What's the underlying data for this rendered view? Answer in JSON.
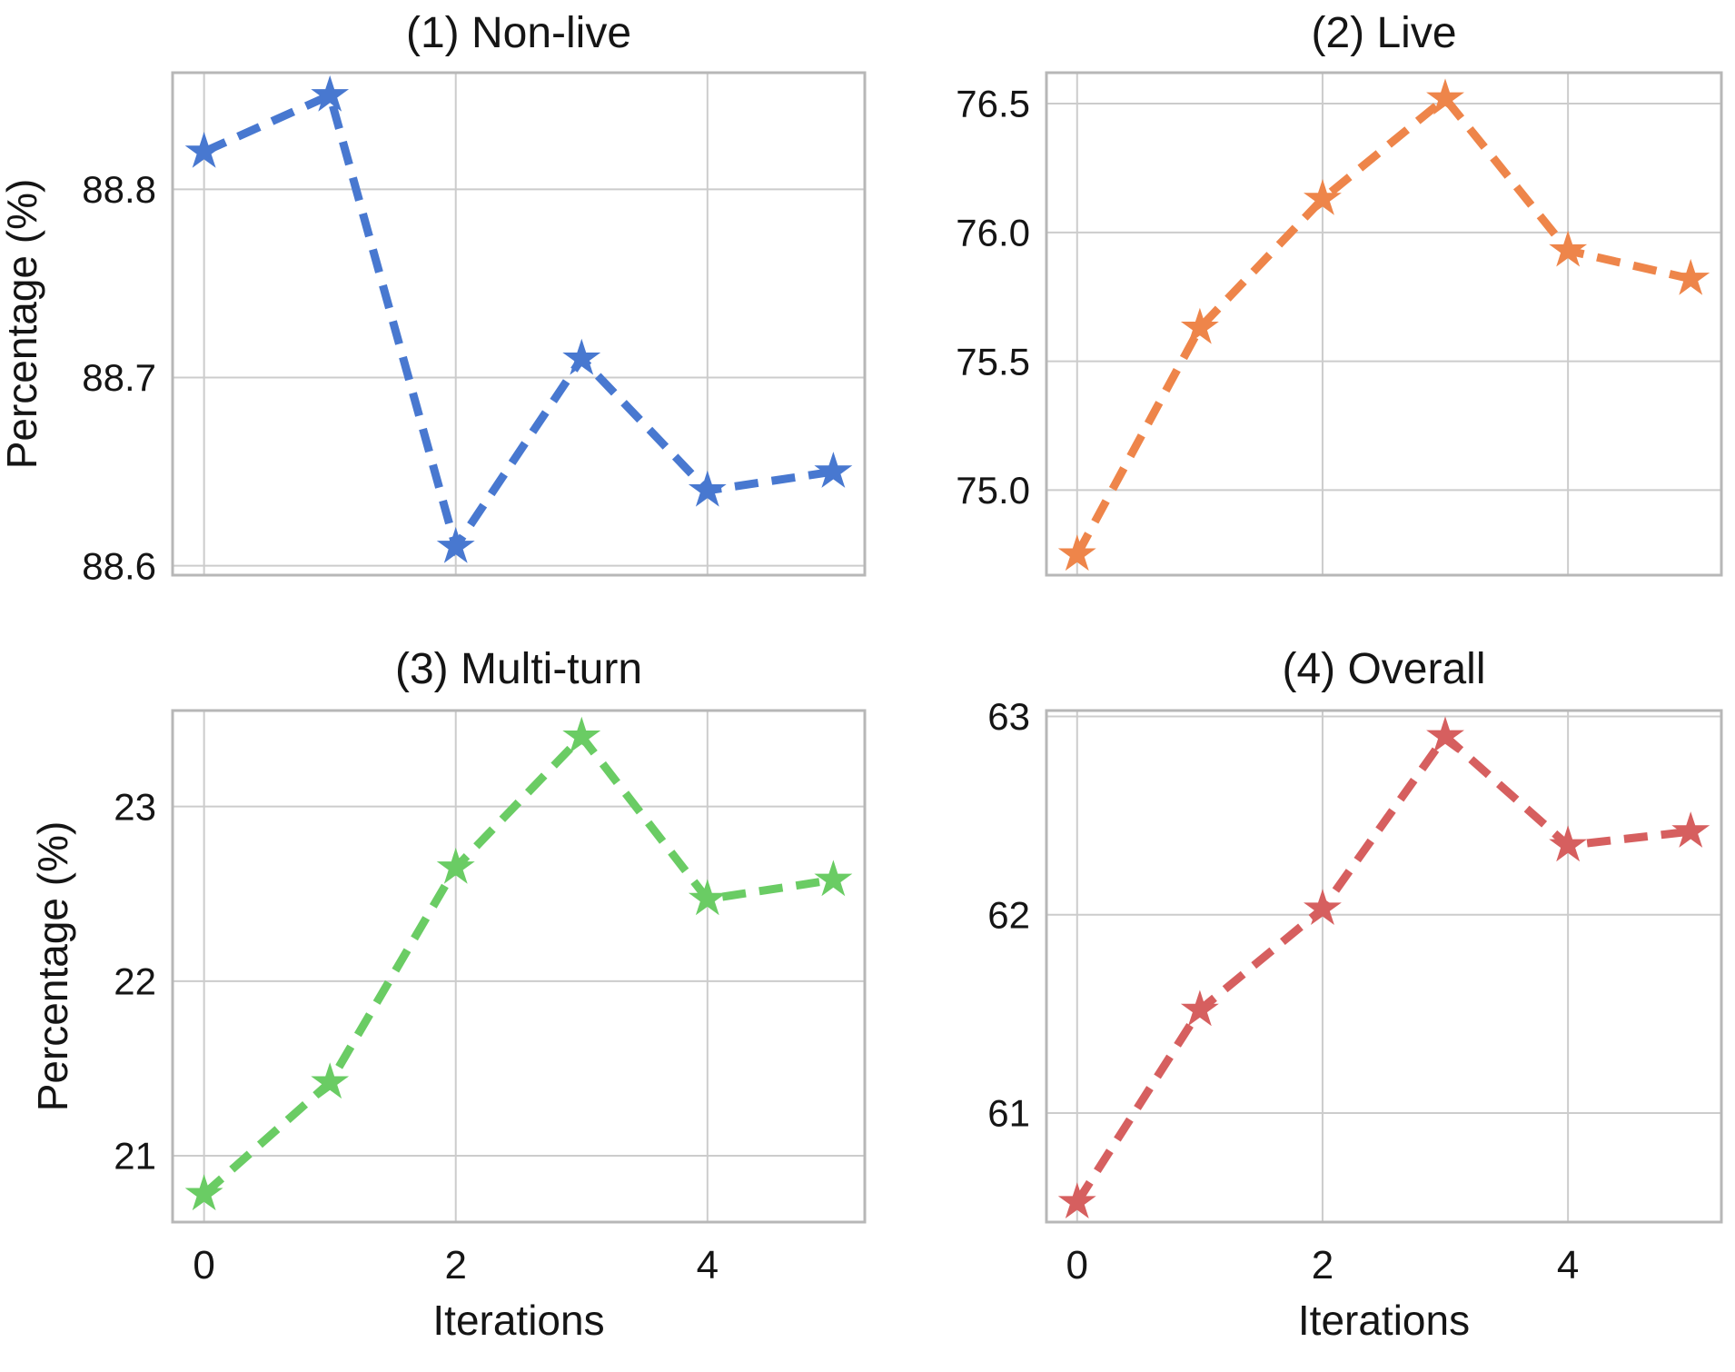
{
  "figure": {
    "background": "#ffffff",
    "grid_color": "#cccccc",
    "border_color": "#b7b7b7",
    "text_color": "#151515"
  },
  "chart_data": [
    {
      "type": "line",
      "title": "(1) Non-live",
      "ylabel": "Percentage (%)",
      "xlabel": "",
      "x": [
        0,
        1,
        2,
        3,
        4,
        5
      ],
      "values": [
        88.82,
        88.85,
        88.61,
        88.71,
        88.64,
        88.65
      ],
      "color": "#4878D0",
      "marker": "star",
      "linestyle": "dashed",
      "grid": true,
      "legend": "none",
      "yticks": [
        88.6,
        88.7,
        88.8
      ],
      "ytick_labels": [
        "88.6",
        "88.7",
        "88.8"
      ],
      "ylim": [
        88.595,
        88.862
      ],
      "xticks": [
        0,
        2,
        4
      ],
      "xtick_labels": [
        "0",
        "2",
        "4"
      ],
      "show_xtick_labels": false,
      "xlim": [
        -0.25,
        5.25
      ]
    },
    {
      "type": "line",
      "title": "(2) Live",
      "ylabel": "",
      "xlabel": "",
      "x": [
        0,
        1,
        2,
        3,
        4,
        5
      ],
      "values": [
        74.75,
        75.63,
        76.13,
        76.52,
        75.93,
        75.82
      ],
      "color": "#EE854A",
      "marker": "star",
      "linestyle": "dashed",
      "grid": true,
      "legend": "none",
      "yticks": [
        75.0,
        75.5,
        76.0,
        76.5
      ],
      "ytick_labels": [
        "75.0",
        "75.5",
        "76.0",
        "76.5"
      ],
      "ylim": [
        74.67,
        76.62
      ],
      "xticks": [
        0,
        2,
        4
      ],
      "xtick_labels": [
        "0",
        "2",
        "4"
      ],
      "show_xtick_labels": false,
      "xlim": [
        -0.25,
        5.25
      ]
    },
    {
      "type": "line",
      "title": "(3) Multi-turn",
      "ylabel": "Percentage (%)",
      "xlabel": "Iterations",
      "x": [
        0,
        1,
        2,
        3,
        4,
        5
      ],
      "values": [
        20.78,
        21.42,
        22.65,
        23.4,
        22.47,
        22.58
      ],
      "color": "#6ACC64",
      "marker": "star",
      "linestyle": "dashed",
      "grid": true,
      "legend": "none",
      "yticks": [
        21,
        22,
        23
      ],
      "ytick_labels": [
        "21",
        "22",
        "23"
      ],
      "ylim": [
        20.62,
        23.55
      ],
      "xticks": [
        0,
        2,
        4
      ],
      "xtick_labels": [
        "0",
        "2",
        "4"
      ],
      "show_xtick_labels": true,
      "xlim": [
        -0.25,
        5.25
      ]
    },
    {
      "type": "line",
      "title": "(4) Overall",
      "ylabel": "",
      "xlabel": "Iterations",
      "x": [
        0,
        1,
        2,
        3,
        4,
        5
      ],
      "values": [
        60.55,
        61.52,
        62.03,
        62.9,
        62.35,
        62.42
      ],
      "color": "#D65F5F",
      "marker": "star",
      "linestyle": "dashed",
      "grid": true,
      "legend": "none",
      "yticks": [
        61,
        62,
        63
      ],
      "ytick_labels": [
        "61",
        "62",
        "63"
      ],
      "ylim": [
        60.45,
        63.03
      ],
      "xticks": [
        0,
        2,
        4
      ],
      "xtick_labels": [
        "0",
        "2",
        "4"
      ],
      "show_xtick_labels": true,
      "xlim": [
        -0.25,
        5.25
      ]
    }
  ]
}
